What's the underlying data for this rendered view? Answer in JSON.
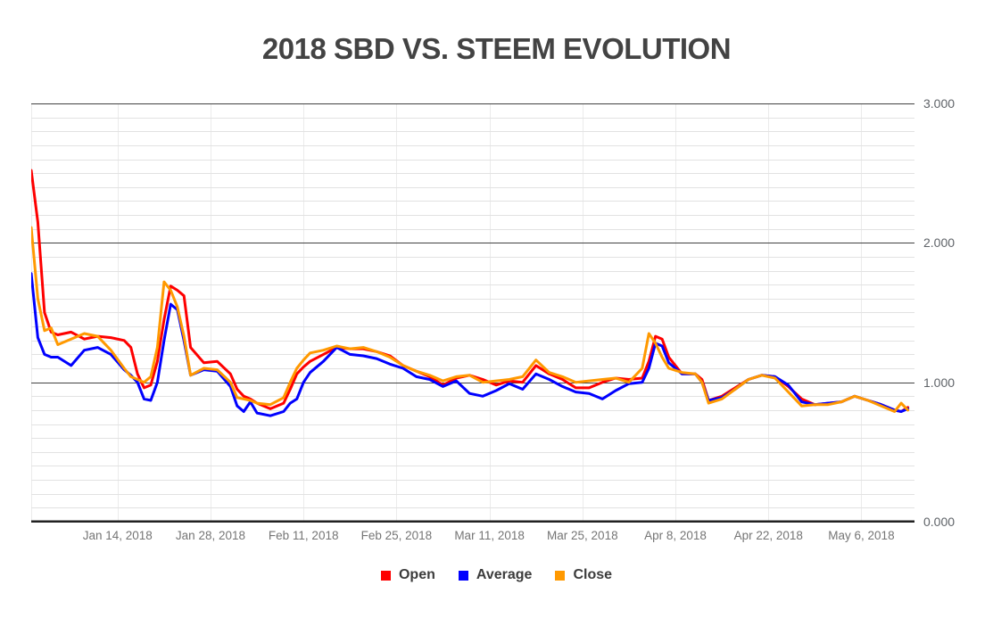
{
  "chart_data": {
    "type": "line",
    "title": "2018 SBD VS. STEEM EVOLUTION",
    "xlabel": "",
    "ylabel": "",
    "ylim": [
      0,
      3
    ],
    "y_major_step": 1,
    "y_minor_step": 0.1,
    "grid": true,
    "legend_position": "bottom",
    "y_ticks": [
      {
        "value": 0,
        "label": "0.000"
      },
      {
        "value": 1,
        "label": "1.000"
      },
      {
        "value": 2,
        "label": "2.000"
      },
      {
        "value": 3,
        "label": "3.000"
      }
    ],
    "x_domain_days": [
      0,
      133
    ],
    "x_ticks": [
      {
        "day": 13,
        "label": "Jan 14, 2018"
      },
      {
        "day": 27,
        "label": "Jan 28, 2018"
      },
      {
        "day": 41,
        "label": "Feb 11, 2018"
      },
      {
        "day": 55,
        "label": "Feb 25, 2018"
      },
      {
        "day": 69,
        "label": "Mar 11, 2018"
      },
      {
        "day": 83,
        "label": "Mar 25, 2018"
      },
      {
        "day": 97,
        "label": "Apr 8, 2018"
      },
      {
        "day": 111,
        "label": "Apr 22, 2018"
      },
      {
        "day": 125,
        "label": "May 6, 2018"
      }
    ],
    "x_days": [
      0,
      1,
      2,
      3,
      4,
      6,
      8,
      10,
      12,
      14,
      15,
      16,
      17,
      18,
      19,
      20,
      21,
      22,
      23,
      24,
      26,
      28,
      30,
      31,
      32,
      33,
      34,
      36,
      38,
      39,
      40,
      41,
      42,
      44,
      46,
      48,
      50,
      52,
      54,
      56,
      58,
      60,
      62,
      64,
      66,
      68,
      70,
      72,
      74,
      76,
      78,
      80,
      82,
      84,
      86,
      88,
      90,
      92,
      93,
      94,
      95,
      96,
      98,
      100,
      101,
      102,
      104,
      106,
      108,
      110,
      112,
      114,
      116,
      118,
      120,
      122,
      124,
      126,
      128,
      130,
      131,
      132
    ],
    "series": [
      {
        "name": "Open",
        "color": "#fe0000",
        "values": [
          2.52,
          2.15,
          1.5,
          1.36,
          1.34,
          1.36,
          1.31,
          1.33,
          1.32,
          1.3,
          1.25,
          1.06,
          0.96,
          0.98,
          1.15,
          1.45,
          1.69,
          1.66,
          1.62,
          1.25,
          1.14,
          1.15,
          1.06,
          0.95,
          0.9,
          0.88,
          0.85,
          0.81,
          0.85,
          0.95,
          1.06,
          1.11,
          1.15,
          1.2,
          1.25,
          1.24,
          1.24,
          1.22,
          1.19,
          1.12,
          1.08,
          1.04,
          0.98,
          1.03,
          1.05,
          1.02,
          0.98,
          1.01,
          1.0,
          1.12,
          1.06,
          1.02,
          0.96,
          0.96,
          1.0,
          1.03,
          1.02,
          1.03,
          1.15,
          1.33,
          1.31,
          1.18,
          1.06,
          1.06,
          1.02,
          0.87,
          0.9,
          0.96,
          1.02,
          1.05,
          1.04,
          0.97,
          0.88,
          0.84,
          0.85,
          0.86,
          0.9,
          0.87,
          0.84,
          0.8,
          0.79,
          0.82
        ]
      },
      {
        "name": "Average",
        "color": "#0000fe",
        "values": [
          1.78,
          1.32,
          1.2,
          1.18,
          1.18,
          1.12,
          1.23,
          1.25,
          1.2,
          1.09,
          1.05,
          1.0,
          0.88,
          0.87,
          1.0,
          1.3,
          1.56,
          1.52,
          1.3,
          1.05,
          1.09,
          1.08,
          0.97,
          0.83,
          0.79,
          0.86,
          0.78,
          0.76,
          0.79,
          0.85,
          0.88,
          1.0,
          1.07,
          1.15,
          1.25,
          1.2,
          1.19,
          1.17,
          1.13,
          1.1,
          1.04,
          1.02,
          0.97,
          1.01,
          0.92,
          0.9,
          0.94,
          0.99,
          0.95,
          1.06,
          1.02,
          0.97,
          0.93,
          0.92,
          0.88,
          0.94,
          0.99,
          1.0,
          1.1,
          1.28,
          1.26,
          1.14,
          1.06,
          1.06,
          1.0,
          0.87,
          0.89,
          0.95,
          1.02,
          1.05,
          1.04,
          0.98,
          0.86,
          0.84,
          0.85,
          0.86,
          0.9,
          0.87,
          0.84,
          0.8,
          0.79,
          0.81
        ]
      },
      {
        "name": "Close",
        "color": "#ff9900",
        "values": [
          2.11,
          1.6,
          1.37,
          1.39,
          1.27,
          1.31,
          1.35,
          1.33,
          1.23,
          1.1,
          1.04,
          1.02,
          1.0,
          1.04,
          1.25,
          1.72,
          1.66,
          1.54,
          1.33,
          1.05,
          1.1,
          1.09,
          1.0,
          0.89,
          0.88,
          0.87,
          0.85,
          0.84,
          0.89,
          1.0,
          1.1,
          1.16,
          1.21,
          1.23,
          1.26,
          1.24,
          1.25,
          1.22,
          1.18,
          1.12,
          1.08,
          1.05,
          1.01,
          1.04,
          1.05,
          1.0,
          1.01,
          1.02,
          1.04,
          1.16,
          1.07,
          1.04,
          1.0,
          1.01,
          1.02,
          1.03,
          1.0,
          1.1,
          1.35,
          1.28,
          1.18,
          1.1,
          1.07,
          1.06,
          1.0,
          0.85,
          0.88,
          0.95,
          1.02,
          1.05,
          1.03,
          0.93,
          0.83,
          0.84,
          0.84,
          0.86,
          0.9,
          0.87,
          0.83,
          0.79,
          0.85,
          0.8
        ]
      }
    ],
    "style": {
      "background": "#ffffff",
      "grid_major_color": "#424242",
      "grid_axis_color": "#212121",
      "grid_minor_color": "#e2e2e2",
      "grid_vertical_color": "#ebebeb",
      "title_color": "#434343",
      "x_label_color": "#757575",
      "y_label_color": "#5f6368",
      "legend_text_color": "#3c3c3c",
      "line_width": 3
    }
  }
}
